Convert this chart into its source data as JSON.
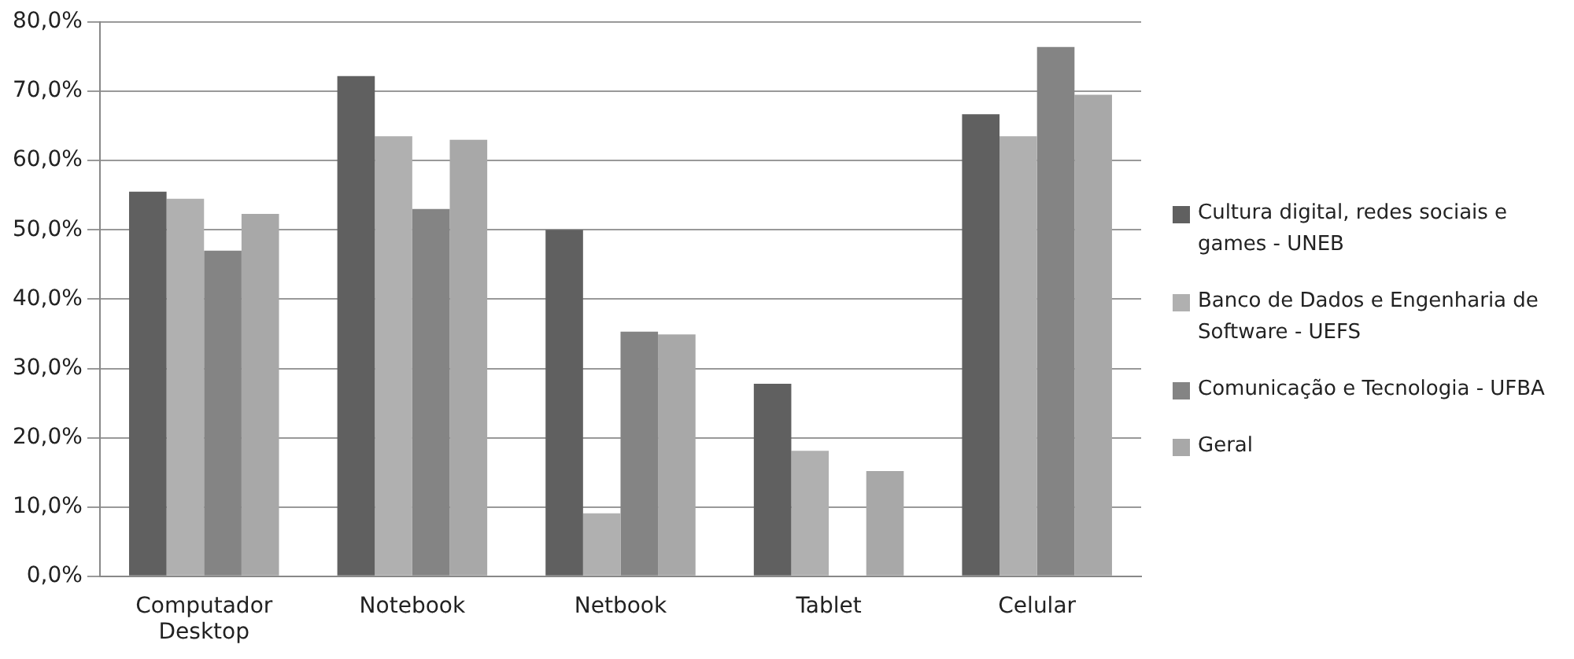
{
  "chart_data": {
    "type": "bar",
    "categories": [
      "Computador Desktop",
      "Notebook",
      "Netbook",
      "Tablet",
      "Celular"
    ],
    "series": [
      {
        "name": "Cultura digital, redes sociais e games - UNEB",
        "color": "#606060",
        "values": [
          55.5,
          72.2,
          50.0,
          27.8,
          66.7
        ]
      },
      {
        "name": "Banco de Dados e Engenharia de Software - UEFS",
        "color": "#b0b0b0",
        "values": [
          54.5,
          63.5,
          9.1,
          18.1,
          63.5
        ]
      },
      {
        "name": "Comunicação e Tecnologia - UFBA",
        "color": "#848484",
        "values": [
          47.0,
          53.0,
          35.3,
          0,
          76.4
        ]
      },
      {
        "name": "Geral",
        "color": "#a8a8a8",
        "values": [
          52.3,
          63.0,
          34.9,
          15.2,
          69.5
        ]
      }
    ],
    "ylim": [
      0,
      80
    ],
    "yticks": [
      {
        "value": 0,
        "label": "0,0%"
      },
      {
        "value": 10,
        "label": "10,0%"
      },
      {
        "value": 20,
        "label": "20,0%"
      },
      {
        "value": 30,
        "label": "30,0%"
      },
      {
        "value": 40,
        "label": "40,0%"
      },
      {
        "value": 50,
        "label": "50,0%"
      },
      {
        "value": 60,
        "label": "60,0%"
      },
      {
        "value": 70,
        "label": "70,0%"
      },
      {
        "value": 80,
        "label": "80,0%"
      }
    ],
    "grid": "y",
    "legend": "right"
  }
}
